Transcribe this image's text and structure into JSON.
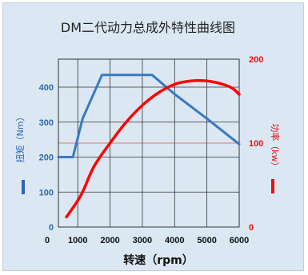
{
  "chart_data": {
    "type": "line",
    "title": "DM二代动力总成外特性曲线图",
    "xlabel": "转速（rpm）",
    "ylabel": "扭矩（Nm）",
    "y2label": "功率（kw）",
    "x_ticks": [
      "0",
      "1000",
      "2000",
      "3000",
      "4000",
      "5000",
      "6000"
    ],
    "y_ticks": [
      "0",
      "100",
      "200",
      "300",
      "400"
    ],
    "y2_ticks": [
      "0",
      "100",
      "200"
    ],
    "xlim": [
      400,
      6000
    ],
    "ylim": [
      0,
      480
    ],
    "y2lim": [
      0,
      200
    ],
    "grid": true,
    "legend": "none",
    "series": [
      {
        "name": "扭矩（Nm）",
        "axis": "left",
        "color": "#3a78c4",
        "x": [
          400,
          850,
          1150,
          1750,
          2200,
          3000,
          3300,
          4000,
          5000,
          6000
        ],
        "y": [
          200,
          200,
          310,
          435,
          435,
          435,
          435,
          380,
          310,
          237
        ]
      },
      {
        "name": "功率（kw）",
        "axis": "right",
        "color": "#ff0000",
        "x": [
          650,
          1100,
          1500,
          2000,
          2500,
          3000,
          3500,
          4000,
          4500,
          5000,
          5500,
          5800,
          6000
        ],
        "y": [
          12,
          38,
          72,
          100,
          125,
          145,
          160,
          170,
          174,
          174,
          170,
          165,
          158
        ]
      }
    ]
  }
}
